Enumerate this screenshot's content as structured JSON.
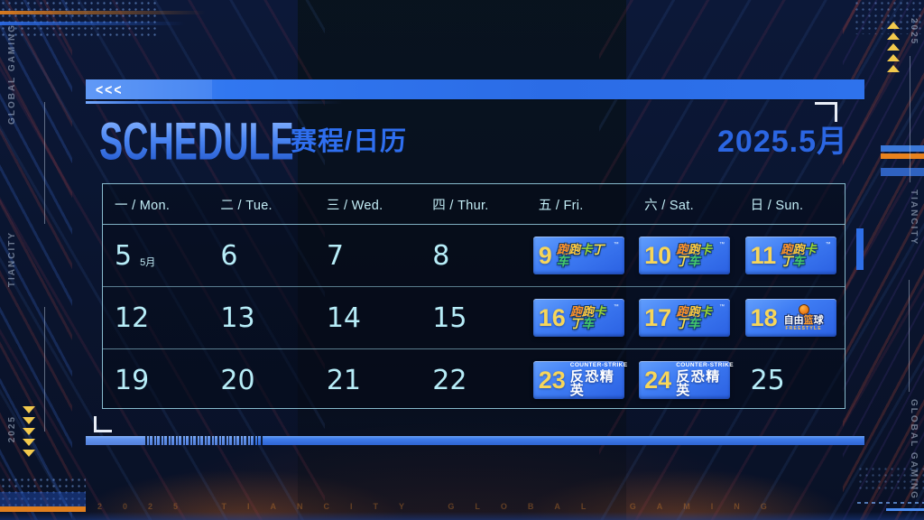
{
  "header": {
    "arrows": "<<<",
    "title_en": "SCHEDULE",
    "title_zh": "赛程/日历",
    "month": "2025.5月"
  },
  "calendar": {
    "weekdays": [
      "一 / Mon.",
      "二 / Tue.",
      "三 / Wed.",
      "四 / Thur.",
      "五 / Fri.",
      "六 / Sat.",
      "日 / Sun."
    ],
    "weeks": [
      [
        {
          "day": "5",
          "note": "5月"
        },
        {
          "day": "6"
        },
        {
          "day": "7"
        },
        {
          "day": "8"
        },
        {
          "day": "9",
          "event": "kartrider"
        },
        {
          "day": "10",
          "event": "kartrider"
        },
        {
          "day": "11",
          "event": "kartrider"
        }
      ],
      [
        {
          "day": "12"
        },
        {
          "day": "13"
        },
        {
          "day": "14"
        },
        {
          "day": "15"
        },
        {
          "day": "16",
          "event": "kartrider"
        },
        {
          "day": "17",
          "event": "kartrider"
        },
        {
          "day": "18",
          "event": "freestyle"
        }
      ],
      [
        {
          "day": "19"
        },
        {
          "day": "20"
        },
        {
          "day": "21"
        },
        {
          "day": "22"
        },
        {
          "day": "23",
          "event": "cs"
        },
        {
          "day": "24",
          "event": "cs"
        },
        {
          "day": "25"
        }
      ]
    ],
    "events": {
      "kartrider": {
        "name": "跑跑卡丁车",
        "tm": "™",
        "chars": [
          {
            "t": "跑",
            "c": "#ff9126"
          },
          {
            "t": "跑",
            "c": "#ffc93c"
          },
          {
            "t": "卡",
            "c": "#9ad531"
          },
          {
            "t": "丁",
            "c": "#ffe14d"
          },
          {
            "t": "车",
            "c": "#43c96b"
          }
        ]
      },
      "freestyle": {
        "name": "自由篮球",
        "sub": "FREESTYLE",
        "name_chars": [
          {
            "t": "自",
            "c": "#ffffff"
          },
          {
            "t": "由",
            "c": "#ffffff"
          },
          {
            "t": "篮",
            "c": "#ff9d2e"
          },
          {
            "t": "球",
            "c": "#ffffff"
          }
        ]
      },
      "cs": {
        "top": "COUNTER-STRIKE",
        "name": "反恐精英"
      }
    }
  },
  "sides": {
    "left_top": "GLOBAL GAMING",
    "left_mid": "TIANCITY",
    "right_top": "2025",
    "right_mid": "TIANCITY",
    "right_bottom": "GLOBAL GAMING",
    "bottom_left": "2025"
  },
  "footer": {
    "watermark": "2025 TIANCITY GLOBAL GAMING"
  },
  "colors": {
    "bar_blue": "#2e72ec",
    "title_blue": "#4b86f2",
    "accent_blue": "#2b66e2",
    "cyan_text": "#b7edf8",
    "event_badge_blue": "#3f7df4",
    "event_yellow": "#f7d65a",
    "triangle_yellow": "#f2c94c",
    "stripe_orange": "#e8821e"
  }
}
